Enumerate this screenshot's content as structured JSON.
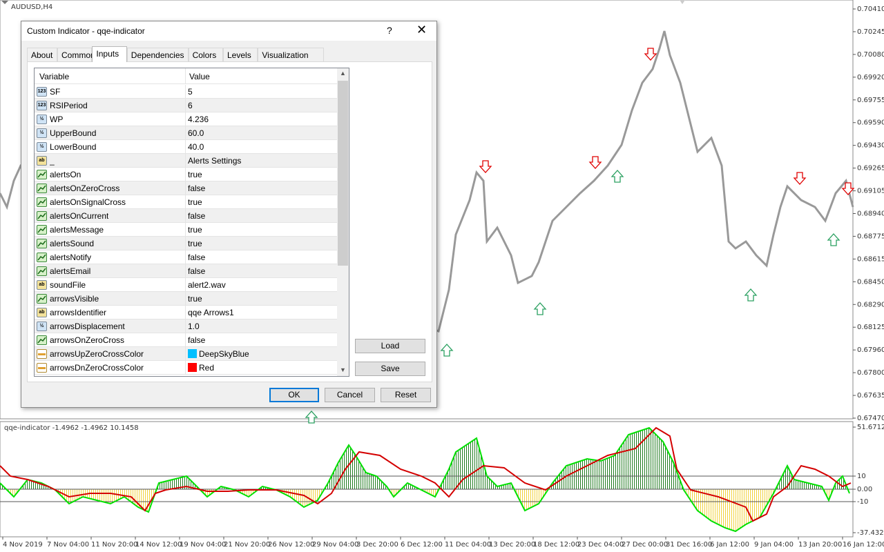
{
  "chart_window": {
    "symbol": "AUDUSD,H4",
    "price_axis": [
      "0.70410",
      "0.70245",
      "0.70080",
      "0.69920",
      "0.69755",
      "0.69590",
      "0.69430",
      "0.69265",
      "0.69105",
      "0.68940",
      "0.68775",
      "0.68615",
      "0.68450",
      "0.68290",
      "0.68125",
      "0.67960",
      "0.67800",
      "0.67635",
      "0.67470"
    ],
    "indicator_label": "qqe-indicator -1.4962 -1.4962 10.1458",
    "indicator_axis": [
      "51.6712",
      "10",
      "0.00",
      "-10",
      "-37.4322"
    ],
    "time_axis": [
      "4 Nov 2019",
      "7 Nov 04:00",
      "11 Nov 20:00",
      "14 Nov 12:00",
      "19 Nov 04:00",
      "21 Nov 20:00",
      "26 Nov 12:00",
      "29 Nov 04:00",
      "3 Dec 20:00",
      "6 Dec 12:00",
      "11 Dec 04:00",
      "13 Dec 20:00",
      "18 Dec 12:00",
      "23 Dec 04:00",
      "27 Dec 00:00",
      "31 Dec 16:00",
      "6 Jan 12:00",
      "9 Jan 04:00",
      "13 Jan 20:00",
      "16 Jan 12:00"
    ]
  },
  "dialog": {
    "title": "Custom Indicator - qqe-indicator",
    "help": "?",
    "tabs": [
      "About",
      "Common",
      "Inputs",
      "Dependencies",
      "Colors",
      "Levels",
      "Visualization"
    ]
  },
  "table": {
    "headers": [
      "Variable",
      "Value"
    ],
    "rows": [
      {
        "icon": "123",
        "name": "SF",
        "value": "5"
      },
      {
        "icon": "123",
        "name": "RSIPeriod",
        "value": "6"
      },
      {
        "icon": "½",
        "name": "WP",
        "value": "4.236"
      },
      {
        "icon": "½",
        "name": "UpperBound",
        "value": "60.0"
      },
      {
        "icon": "½",
        "name": "LowerBound",
        "value": "40.0"
      },
      {
        "icon": "ab",
        "name": "_",
        "value": "Alerts Settings"
      },
      {
        "icon": null,
        "name": "alertsOn",
        "value": "true"
      },
      {
        "icon": null,
        "name": "alertsOnZeroCross",
        "value": "false"
      },
      {
        "icon": null,
        "name": "alertsOnSignalCross",
        "value": "true"
      },
      {
        "icon": null,
        "name": "alertsOnCurrent",
        "value": "false"
      },
      {
        "icon": null,
        "name": "alertsMessage",
        "value": "true"
      },
      {
        "icon": null,
        "name": "alertsSound",
        "value": "true"
      },
      {
        "icon": null,
        "name": "alertsNotify",
        "value": "false"
      },
      {
        "icon": null,
        "name": "alertsEmail",
        "value": "false"
      },
      {
        "icon": "ab",
        "name": "soundFile",
        "value": "alert2.wav"
      },
      {
        "icon": null,
        "name": "arrowsVisible",
        "value": "true"
      },
      {
        "icon": "ab",
        "name": "arrowsIdentifier",
        "value": "qqe Arrows1"
      },
      {
        "icon": "½",
        "name": "arrowsDisplacement",
        "value": "1.0"
      },
      {
        "icon": null,
        "name": "arrowsOnZeroCross",
        "value": "false"
      },
      {
        "icon": null,
        "name": "arrowsUpZeroCrossColor",
        "value": "DeepSkyBlue",
        "swatch": "#00bfff"
      },
      {
        "icon": null,
        "name": "arrowsDnZeroCrossColor",
        "value": "Red",
        "swatch": "#ff0000"
      }
    ]
  },
  "buttons": {
    "load": "Load",
    "save": "Save",
    "ok": "OK",
    "cancel": "Cancel",
    "reset": "Reset"
  }
}
